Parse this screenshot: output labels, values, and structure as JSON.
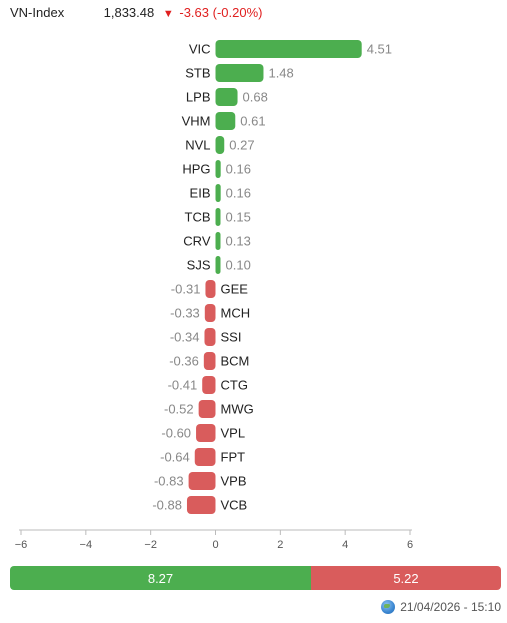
{
  "header": {
    "index_name": "VN-Index",
    "value": "1,833.48",
    "arrow": "▼",
    "change": "-3.63 (-0.20%)"
  },
  "colors": {
    "up": "#4cae4f",
    "down": "#d95c5c",
    "label_up": "#222222",
    "value_text": "#888888"
  },
  "chart_data": {
    "type": "bar",
    "orientation": "horizontal",
    "categories": [
      "VIC",
      "STB",
      "LPB",
      "VHM",
      "NVL",
      "HPG",
      "EIB",
      "TCB",
      "CRV",
      "SJS",
      "GEE",
      "MCH",
      "SSI",
      "BCM",
      "CTG",
      "MWG",
      "VPL",
      "FPT",
      "VPB",
      "VCB"
    ],
    "values": [
      4.51,
      1.48,
      0.68,
      0.61,
      0.27,
      0.16,
      0.16,
      0.15,
      0.13,
      0.1,
      -0.31,
      -0.33,
      -0.34,
      -0.36,
      -0.41,
      -0.52,
      -0.6,
      -0.64,
      -0.83,
      -0.88
    ],
    "value_labels": [
      "4.51",
      "1.48",
      "0.68",
      "0.61",
      "0.27",
      "0.16",
      "0.16",
      "0.15",
      "0.13",
      "0.10",
      "-0.31",
      "-0.33",
      "-0.34",
      "-0.36",
      "-0.41",
      "-0.52",
      "-0.60",
      "-0.64",
      "-0.83",
      "-0.88"
    ],
    "xlim": [
      -6,
      6
    ],
    "xticks": [
      -6,
      -4,
      -2,
      0,
      2,
      4,
      6
    ],
    "xtick_labels": [
      "−6",
      "−4",
      "−2",
      "0",
      "2",
      "4",
      "6"
    ],
    "title": "",
    "xlabel": "",
    "ylabel": "",
    "grid": false
  },
  "summary": {
    "up_value": "8.27",
    "down_value": "5.22",
    "up": 8.27,
    "down": 5.22
  },
  "footer": {
    "icon": "globe-icon",
    "timestamp": "21/04/2026 - 15:10"
  }
}
